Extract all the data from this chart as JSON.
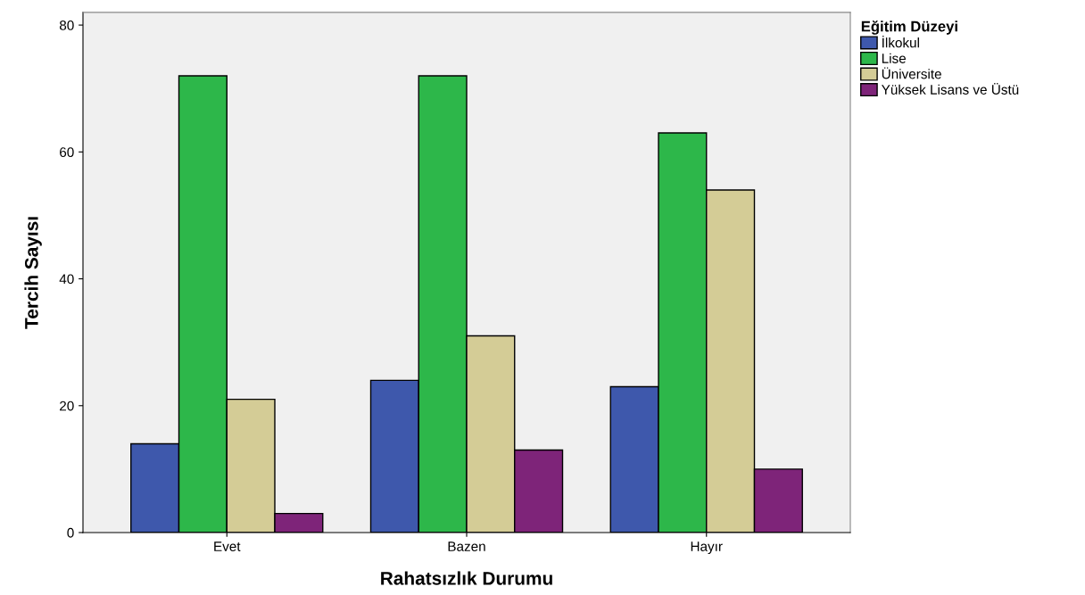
{
  "chart_data": {
    "type": "bar",
    "xlabel": "Rahatsızlık Durumu",
    "ylabel": "Tercih Sayısı",
    "legend_title": "Eğitim Düzeyi",
    "legend": "right",
    "grid": false,
    "categories": [
      "Evet",
      "Bazen",
      "Hayır"
    ],
    "ylim": [
      0,
      82
    ],
    "yticks": [
      0,
      20,
      40,
      60,
      80
    ],
    "series": [
      {
        "name": "İlkokul",
        "color": "#3e58ac",
        "values": [
          14,
          24,
          23
        ]
      },
      {
        "name": "Lise",
        "color": "#2db74a",
        "values": [
          72,
          72,
          63
        ]
      },
      {
        "name": "Üniversite",
        "color": "#d4cc96",
        "values": [
          21,
          31,
          54
        ]
      },
      {
        "name": "Yüksek Lisans ve Üstü",
        "color": "#7e2479",
        "values": [
          3,
          13,
          10
        ]
      }
    ]
  }
}
